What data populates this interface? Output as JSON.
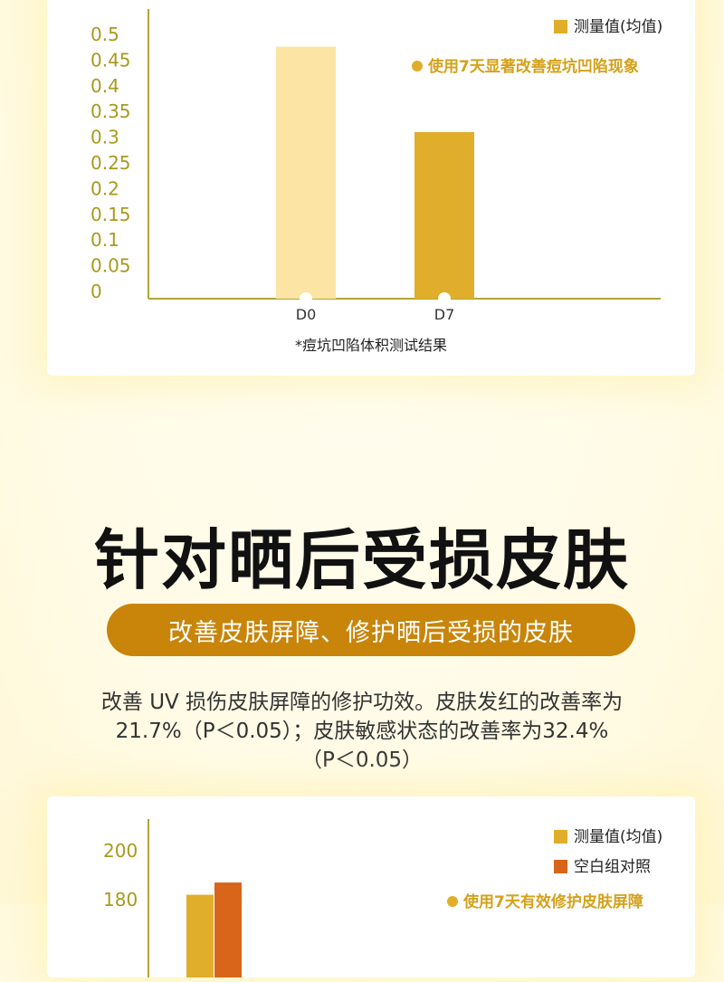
{
  "chart_data": [
    {
      "type": "bar",
      "categories": [
        "D0",
        "D7"
      ],
      "values": [
        0.476,
        0.31
      ],
      "bar_colors": [
        "#fbe4a4",
        "#e0ae2a"
      ],
      "yticks": [
        "0.5",
        "0.45",
        "0.4",
        "0.35",
        "0.3",
        "0.25",
        "0.2",
        "0.15",
        "0.1",
        "0.05",
        "0"
      ],
      "ylim": [
        0,
        0.5
      ],
      "legend": [
        {
          "label": "测量值(均值)",
          "color": "#e0ae2a"
        }
      ],
      "annotation": "使用7天显著改善痘坑凹陷现象",
      "caption": "*痘坑凹陷体积测试结果"
    },
    {
      "type": "bar",
      "yticks": [
        "200",
        "180"
      ],
      "series": [
        {
          "label": "测量值(均值)",
          "color": "#e0ae2a",
          "values": [
            182
          ]
        },
        {
          "label": "空白组对照",
          "color": "#d8651a",
          "values": [
            187
          ]
        }
      ],
      "annotation": "使用7天有效修护皮肤屏障"
    }
  ],
  "section": {
    "title": "针对晒后受损皮肤",
    "subtitle": "改善皮肤屏障、修护晒后受损的皮肤",
    "desc_lines": [
      "改善 UV 损伤皮肤屏障的修护功效。皮肤发红的改善率为",
      "21.7%（P＜0.05）；皮肤敏感状态的改善率为32.4%",
      "（P＜0.05）"
    ]
  }
}
